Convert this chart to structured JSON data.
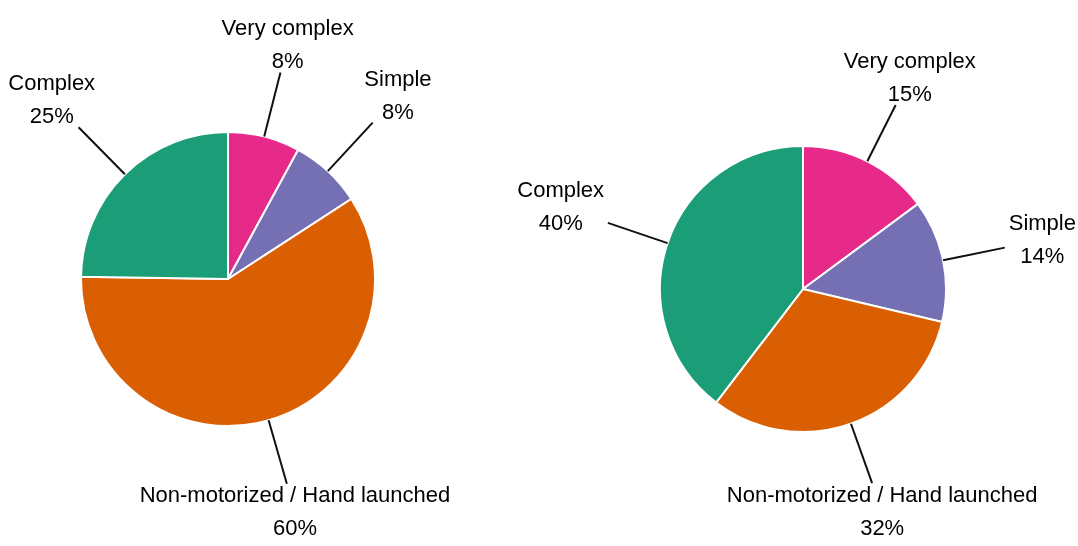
{
  "chart_data": [
    {
      "type": "pie",
      "categories": [
        "Very complex",
        "Simple",
        "Non-motorized / Hand launched",
        "Complex"
      ],
      "values": [
        8,
        8,
        60,
        25
      ],
      "value_labels": [
        "8%",
        "8%",
        "60%",
        "25%"
      ],
      "colors": [
        "#e7298a",
        "#7570b3",
        "#d95f02",
        "#1b9e77"
      ]
    },
    {
      "type": "pie",
      "categories": [
        "Very complex",
        "Simple",
        "Non-motorized / Hand launched",
        "Complex"
      ],
      "values": [
        15,
        14,
        32,
        40
      ],
      "value_labels": [
        "15%",
        "14%",
        "32%",
        "40%"
      ],
      "colors": [
        "#e7298a",
        "#7570b3",
        "#d95f02",
        "#1b9e77"
      ]
    }
  ]
}
